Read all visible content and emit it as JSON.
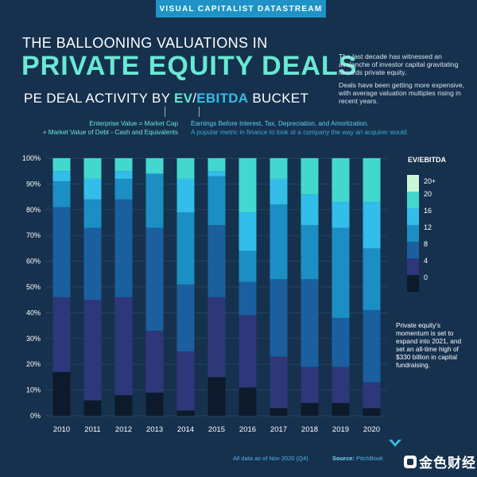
{
  "header": {
    "banner": "VISUAL CAPITALIST DATASTREAM",
    "title_top": "THE BALLOONING VALUATIONS IN",
    "title_main": "PRIVATE EQUITY DEALS"
  },
  "intro": {
    "p1": "The last decade has witnessed an avalanche of investor capital gravitating towards private equity.",
    "p2": "Deals have been getting more expensive, with average valuation multiples rising in recent years."
  },
  "subtitle": {
    "prefix": "PE DEAL ACTIVITY BY ",
    "ev": "EV",
    "slash": "/",
    "ebitda": "EBITDA",
    "suffix": " BUCKET"
  },
  "definitions": {
    "ev_line1": "Enterprise Value = Market Cap",
    "ev_line2": "+ Market Value of Debt - Cash and Equivalents",
    "ebitda_line1": "Earnings Before Interest, Tax, Depreciation, and Amortization.",
    "ebitda_line2": "A popular metric in finance to look at a company the way an acquirer would."
  },
  "legend": {
    "title": "EV/EBITDA",
    "labels": [
      "20+",
      "20",
      "16",
      "12",
      "8",
      "4",
      "0"
    ]
  },
  "side_note": "Private equity's momentum is set to expand into 2021, and set an all-time high of $330 billion in capital fundraising.",
  "footer": {
    "note": "All data as of Nov 2020 (Q4)",
    "source_label": "Source:",
    "source": "PitchBook",
    "watermark": "金色财经"
  },
  "colors": {
    "background": "#16314d",
    "accent_teal": "#69e8d4",
    "accent_blue": "#33bde9",
    "buckets": [
      "#0c1a2b",
      "#2d3779",
      "#1b5f9e",
      "#1b8fc4",
      "#33bde9",
      "#42d8d0",
      "#c9f7d8"
    ]
  },
  "chart_data": {
    "type": "bar",
    "stacked": true,
    "categories": [
      "2010",
      "2011",
      "2012",
      "2013",
      "2014",
      "2015",
      "2016",
      "2017",
      "2018",
      "2019",
      "2020"
    ],
    "y_ticks": [
      "0%",
      "10%",
      "20%",
      "30%",
      "40%",
      "50%",
      "60%",
      "70%",
      "80%",
      "90%",
      "100%"
    ],
    "ylim": [
      0,
      100
    ],
    "unit": "%",
    "series": [
      {
        "name": "0-4",
        "values": [
          17,
          6,
          8,
          9,
          2,
          15,
          11,
          3,
          5,
          5,
          3
        ]
      },
      {
        "name": "4-8",
        "values": [
          29,
          39,
          38,
          24,
          23,
          31,
          28,
          20,
          14,
          14,
          10
        ]
      },
      {
        "name": "8-12",
        "values": [
          35,
          28,
          38,
          40,
          26,
          28,
          13,
          30,
          34,
          19,
          28
        ]
      },
      {
        "name": "12-16",
        "values": [
          10,
          11,
          8,
          21,
          28,
          19,
          12,
          29,
          21,
          35,
          24
        ]
      },
      {
        "name": "16-20",
        "values": [
          4,
          8,
          3,
          0,
          13,
          2,
          15,
          10,
          12,
          10,
          18
        ]
      },
      {
        "name": "20+",
        "values": [
          5,
          8,
          5,
          6,
          8,
          5,
          21,
          8,
          14,
          17,
          17
        ]
      }
    ]
  }
}
